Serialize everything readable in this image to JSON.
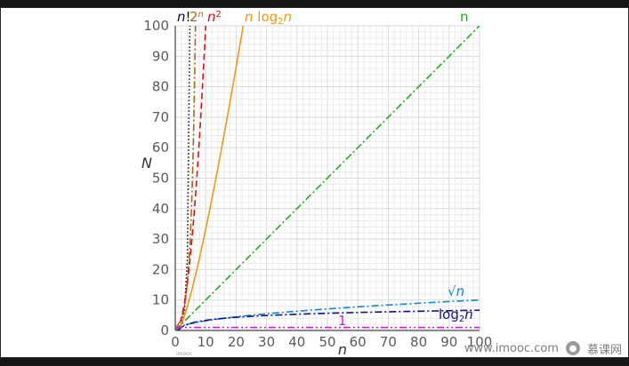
{
  "chart_data": {
    "type": "line",
    "xlabel": "n",
    "ylabel": "N",
    "xlim": [
      0,
      100
    ],
    "ylim": [
      0,
      100
    ],
    "xticks": [
      0,
      10,
      20,
      30,
      40,
      50,
      60,
      70,
      80,
      90,
      100
    ],
    "yticks": [
      0,
      10,
      20,
      30,
      40,
      50,
      60,
      70,
      80,
      90,
      100
    ],
    "grid": true,
    "series": [
      {
        "name": "n!",
        "func": "factorial",
        "color": "#111111",
        "dash": "dotted"
      },
      {
        "name": "2^n",
        "func": "exp2",
        "color": "#a86a10",
        "dash": "dashdot"
      },
      {
        "name": "n^2",
        "func": "square",
        "color": "#dd1111",
        "dash": "dashed"
      },
      {
        "name": "n log2 n",
        "func": "nlogn",
        "color": "#ee9911",
        "dash": "solid"
      },
      {
        "name": "n",
        "func": "linear",
        "color": "#22aa22",
        "dash": "dashdot"
      },
      {
        "name": "√n",
        "func": "sqrt",
        "color": "#1188cc",
        "dash": "dashdot"
      },
      {
        "name": "log2 n",
        "func": "log2",
        "color": "#111188",
        "dash": "dashdot"
      },
      {
        "name": "1",
        "func": "const",
        "color": "#cc22cc",
        "dash": "dashdotdot"
      }
    ]
  },
  "legend": {
    "n_fact": {
      "base": "n",
      "suffix": "!"
    },
    "exp2": {
      "base": "2",
      "sup": "n"
    },
    "square": {
      "base": "n",
      "sup": "2"
    },
    "nlogn": {
      "a": "n",
      "b": " log",
      "sub": "2",
      "c": "n"
    },
    "linear": {
      "text": "n"
    },
    "sqrt": {
      "rad": "√",
      "text": "n"
    },
    "log2": {
      "a": "log",
      "sub": "2",
      "b": "n"
    },
    "const": {
      "text": "1"
    }
  },
  "watermark": {
    "text": "www.imooc.com",
    "brand": "慕课网",
    "icon": "imooc-logo-icon"
  },
  "tiny_mark": "imooc"
}
